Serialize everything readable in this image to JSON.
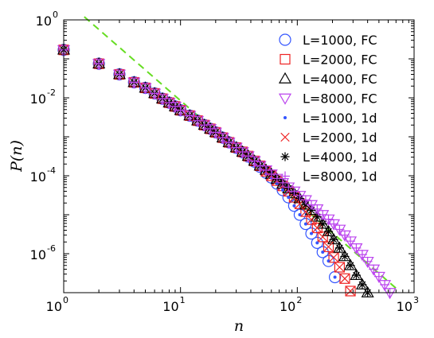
{
  "chart_data": {
    "type": "scatter",
    "xscale": "log",
    "yscale": "log",
    "xlim": [
      1,
      1000
    ],
    "ylim": [
      1e-07,
      1
    ],
    "xlabel": "n",
    "ylabel": "P(n)",
    "x_ticks": [
      {
        "base": "10",
        "exp": "0"
      },
      {
        "base": "10",
        "exp": "1"
      },
      {
        "base": "10",
        "exp": "2"
      },
      {
        "base": "10",
        "exp": "3"
      }
    ],
    "y_ticks": [
      {
        "base": "10",
        "exp": "0"
      },
      {
        "base": "10",
        "exp": "-2"
      },
      {
        "base": "10",
        "exp": "-4"
      },
      {
        "base": "10",
        "exp": "-6"
      }
    ],
    "legend_position": "top-right",
    "reference_line": {
      "style": "dashed",
      "color": "#66dd22",
      "x": [
        1.5,
        700
      ],
      "y": [
        1.2,
        1.3e-07
      ]
    },
    "series": [
      {
        "name": "L=1000, FC",
        "marker": "circle",
        "color": "#3355ff",
        "x": [
          1,
          2,
          3,
          4,
          5,
          6,
          7,
          8,
          9,
          10,
          12,
          14,
          16,
          18,
          20,
          23,
          26,
          30,
          34,
          38,
          43,
          48,
          54,
          60,
          67,
          75,
          84,
          94,
          105,
          118,
          132,
          148,
          165,
          185,
          210
        ],
        "y": [
          0.17,
          0.075,
          0.04,
          0.025,
          0.018,
          0.013,
          0.0095,
          0.0075,
          0.006,
          0.0048,
          0.0035,
          0.0026,
          0.002,
          0.0016,
          0.0013,
          0.00095,
          0.00072,
          0.00052,
          0.0004,
          0.00031,
          0.00023,
          0.00017,
          0.00012,
          9e-05,
          6.3e-05,
          4.3e-05,
          2.8e-05,
          1.7e-05,
          1e-05,
          5.8e-06,
          3.3e-06,
          1.9e-06,
          1.1e-06,
          6.5e-07,
          2.5e-07
        ]
      },
      {
        "name": "L=2000, FC",
        "marker": "square",
        "color": "#ee2222",
        "x": [
          1,
          2,
          3,
          4,
          5,
          6,
          7,
          8,
          9,
          10,
          12,
          14,
          16,
          18,
          20,
          23,
          26,
          30,
          34,
          38,
          43,
          48,
          54,
          60,
          67,
          75,
          84,
          94,
          105,
          118,
          132,
          148,
          165,
          185,
          205,
          230,
          255,
          285
        ],
        "y": [
          0.17,
          0.075,
          0.04,
          0.025,
          0.018,
          0.013,
          0.0095,
          0.0075,
          0.006,
          0.0048,
          0.0035,
          0.0026,
          0.002,
          0.0016,
          0.0013,
          0.00095,
          0.00072,
          0.00053,
          0.00041,
          0.00032,
          0.00024,
          0.00018,
          0.00013,
          0.0001,
          7.5e-05,
          5.5e-05,
          4e-05,
          2.8e-05,
          1.9e-05,
          1.2e-05,
          7.5e-06,
          4.6e-06,
          2.7e-06,
          1.5e-06,
          8e-07,
          4.5e-07,
          2.3e-07,
          1.1e-07
        ]
      },
      {
        "name": "L=4000, FC",
        "marker": "triangle",
        "color": "#000000",
        "x": [
          1,
          2,
          3,
          4,
          5,
          6,
          7,
          8,
          9,
          10,
          12,
          14,
          16,
          18,
          20,
          23,
          26,
          30,
          34,
          38,
          43,
          48,
          54,
          60,
          67,
          75,
          84,
          94,
          105,
          118,
          132,
          148,
          165,
          185,
          205,
          230,
          255,
          285,
          320,
          360,
          400
        ],
        "y": [
          0.17,
          0.075,
          0.04,
          0.025,
          0.018,
          0.013,
          0.0095,
          0.0075,
          0.006,
          0.0048,
          0.0035,
          0.0026,
          0.002,
          0.0016,
          0.0013,
          0.00095,
          0.00072,
          0.00053,
          0.00041,
          0.00032,
          0.00024,
          0.00018,
          0.00014,
          0.00011,
          8.2e-05,
          6.2e-05,
          4.7e-05,
          3.5e-05,
          2.6e-05,
          1.8e-05,
          1.3e-05,
          8.8e-06,
          5.8e-06,
          3.7e-06,
          2.3e-06,
          1.4e-06,
          8.5e-07,
          5e-07,
          2.8e-07,
          1.6e-07,
          1e-07
        ]
      },
      {
        "name": "L=8000, FC",
        "marker": "triangle-down",
        "color": "#bb44ee",
        "x": [
          1,
          2,
          3,
          4,
          5,
          6,
          7,
          8,
          9,
          10,
          12,
          14,
          16,
          18,
          20,
          23,
          26,
          30,
          34,
          38,
          43,
          48,
          54,
          60,
          67,
          75,
          84,
          94,
          105,
          118,
          132,
          148,
          165,
          185,
          205,
          230,
          255,
          285,
          320,
          360,
          400,
          450,
          500,
          560,
          620
        ],
        "y": [
          0.17,
          0.075,
          0.04,
          0.025,
          0.018,
          0.013,
          0.0095,
          0.0075,
          0.006,
          0.0048,
          0.0035,
          0.0026,
          0.002,
          0.0016,
          0.0013,
          0.00095,
          0.00072,
          0.00053,
          0.00041,
          0.00032,
          0.00024,
          0.00018,
          0.00014,
          0.00011,
          8.5e-05,
          6.6e-05,
          5.1e-05,
          4e-05,
          3.1e-05,
          2.4e-05,
          1.8e-05,
          1.4e-05,
          1e-05,
          7.7e-06,
          5.8e-06,
          4.2e-06,
          3e-06,
          2.1e-06,
          1.4e-06,
          9.5e-07,
          6.3e-07,
          4e-07,
          2.6e-07,
          1.6e-07,
          1e-07
        ]
      },
      {
        "name": "L=1000, 1d",
        "marker": "dot",
        "color": "#3355ff",
        "x": [
          1,
          2,
          3,
          4,
          5,
          6,
          7,
          8,
          9,
          10,
          12,
          14,
          16,
          18,
          20,
          23,
          26,
          30,
          34,
          38,
          43,
          48,
          54,
          60,
          67,
          75,
          84,
          94,
          105,
          118,
          132,
          148,
          165,
          185,
          210
        ],
        "y": [
          0.17,
          0.075,
          0.04,
          0.025,
          0.018,
          0.013,
          0.0095,
          0.0075,
          0.006,
          0.0048,
          0.0035,
          0.0026,
          0.002,
          0.0016,
          0.0013,
          0.00095,
          0.00072,
          0.00052,
          0.0004,
          0.00031,
          0.00023,
          0.00017,
          0.00012,
          9e-05,
          6.3e-05,
          4.3e-05,
          2.8e-05,
          1.7e-05,
          1e-05,
          5.8e-06,
          3.3e-06,
          1.9e-06,
          1.1e-06,
          6.5e-07,
          2.5e-07
        ]
      },
      {
        "name": "L=2000, 1d",
        "marker": "x",
        "color": "#ee2222",
        "x": [
          1,
          2,
          3,
          4,
          5,
          6,
          7,
          8,
          9,
          10,
          12,
          14,
          16,
          18,
          20,
          23,
          26,
          30,
          34,
          38,
          43,
          48,
          54,
          60,
          67,
          75,
          84,
          94,
          105,
          118,
          132,
          148,
          165,
          185,
          205,
          230,
          255,
          285
        ],
        "y": [
          0.17,
          0.075,
          0.04,
          0.025,
          0.018,
          0.013,
          0.0095,
          0.0075,
          0.006,
          0.0048,
          0.0035,
          0.0026,
          0.002,
          0.0016,
          0.0013,
          0.00095,
          0.00072,
          0.00053,
          0.00041,
          0.00032,
          0.00024,
          0.00018,
          0.00013,
          0.0001,
          7.5e-05,
          5.5e-05,
          4e-05,
          2.8e-05,
          1.9e-05,
          1.2e-05,
          7.5e-06,
          4.6e-06,
          2.7e-06,
          1.5e-06,
          8e-07,
          4.5e-07,
          2.3e-07,
          1.1e-07
        ]
      },
      {
        "name": "L=4000, 1d",
        "marker": "asterisk",
        "color": "#000000",
        "x": [
          1,
          2,
          3,
          4,
          5,
          6,
          7,
          8,
          9,
          10,
          12,
          14,
          16,
          18,
          20,
          23,
          26,
          30,
          34,
          38,
          43,
          48,
          54,
          60,
          67,
          75,
          84,
          94,
          105,
          118,
          132,
          148,
          165,
          185,
          205,
          230,
          255,
          285,
          320,
          360,
          400
        ],
        "y": [
          0.17,
          0.075,
          0.04,
          0.025,
          0.018,
          0.013,
          0.0095,
          0.0075,
          0.006,
          0.0048,
          0.0035,
          0.0026,
          0.002,
          0.0016,
          0.0013,
          0.00095,
          0.00072,
          0.00053,
          0.00041,
          0.00032,
          0.00024,
          0.00018,
          0.00014,
          0.00011,
          8.2e-05,
          6.2e-05,
          4.7e-05,
          3.5e-05,
          2.6e-05,
          1.8e-05,
          1.3e-05,
          8.8e-06,
          5.8e-06,
          3.7e-06,
          2.3e-06,
          1.4e-06,
          8.5e-07,
          5e-07,
          2.8e-07,
          1.6e-07,
          1e-07
        ]
      },
      {
        "name": "L=8000, 1d",
        "marker": "plus",
        "color": "#bb44ee",
        "x": [
          1,
          2,
          3,
          4,
          5,
          6,
          7,
          8,
          9,
          10,
          12,
          14,
          16,
          18,
          20,
          23,
          26,
          30,
          34,
          38,
          43,
          48,
          54,
          60,
          67,
          75,
          84,
          94,
          105,
          118,
          132,
          148,
          165,
          185,
          205,
          230,
          255,
          285,
          320,
          360,
          400,
          450,
          500,
          560,
          620
        ],
        "y": [
          0.17,
          0.075,
          0.04,
          0.025,
          0.018,
          0.013,
          0.0095,
          0.0075,
          0.006,
          0.0048,
          0.0035,
          0.0026,
          0.002,
          0.0016,
          0.0013,
          0.00095,
          0.00072,
          0.00053,
          0.00041,
          0.00032,
          0.00024,
          0.00018,
          0.00014,
          0.00011,
          8.5e-05,
          6.6e-05,
          5.1e-05,
          4e-05,
          3.1e-05,
          2.4e-05,
          1.8e-05,
          1.4e-05,
          1e-05,
          7.7e-06,
          5.8e-06,
          4.2e-06,
          3e-06,
          2.1e-06,
          1.4e-06,
          9.5e-07,
          6.3e-07,
          4e-07,
          2.6e-07,
          1.6e-07,
          1e-07
        ]
      }
    ]
  }
}
